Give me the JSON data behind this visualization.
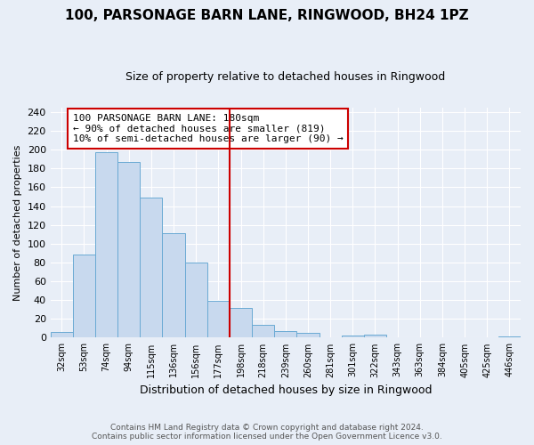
{
  "title": "100, PARSONAGE BARN LANE, RINGWOOD, BH24 1PZ",
  "subtitle": "Size of property relative to detached houses in Ringwood",
  "xlabel": "Distribution of detached houses by size in Ringwood",
  "ylabel": "Number of detached properties",
  "bar_labels": [
    "32sqm",
    "53sqm",
    "74sqm",
    "94sqm",
    "115sqm",
    "136sqm",
    "156sqm",
    "177sqm",
    "198sqm",
    "218sqm",
    "239sqm",
    "260sqm",
    "281sqm",
    "301sqm",
    "322sqm",
    "343sqm",
    "363sqm",
    "384sqm",
    "405sqm",
    "425sqm",
    "446sqm"
  ],
  "bar_values": [
    6,
    88,
    197,
    187,
    149,
    111,
    80,
    39,
    32,
    14,
    7,
    5,
    0,
    2,
    3,
    0,
    0,
    0,
    0,
    0,
    1
  ],
  "bar_color": "#c8d9ee",
  "bar_edge_color": "#6aaad4",
  "vline_x": 7.5,
  "vline_color": "#cc0000",
  "annotation_lines": [
    "100 PARSONAGE BARN LANE: 180sqm",
    "← 90% of detached houses are smaller (819)",
    "10% of semi-detached houses are larger (90) →"
  ],
  "footer_line1": "Contains HM Land Registry data © Crown copyright and database right 2024.",
  "footer_line2": "Contains public sector information licensed under the Open Government Licence v3.0.",
  "ylim": [
    0,
    245
  ],
  "yticks": [
    0,
    20,
    40,
    60,
    80,
    100,
    120,
    140,
    160,
    180,
    200,
    220,
    240
  ],
  "background_color": "#e8eef7",
  "title_fontsize": 11,
  "subtitle_fontsize": 9
}
